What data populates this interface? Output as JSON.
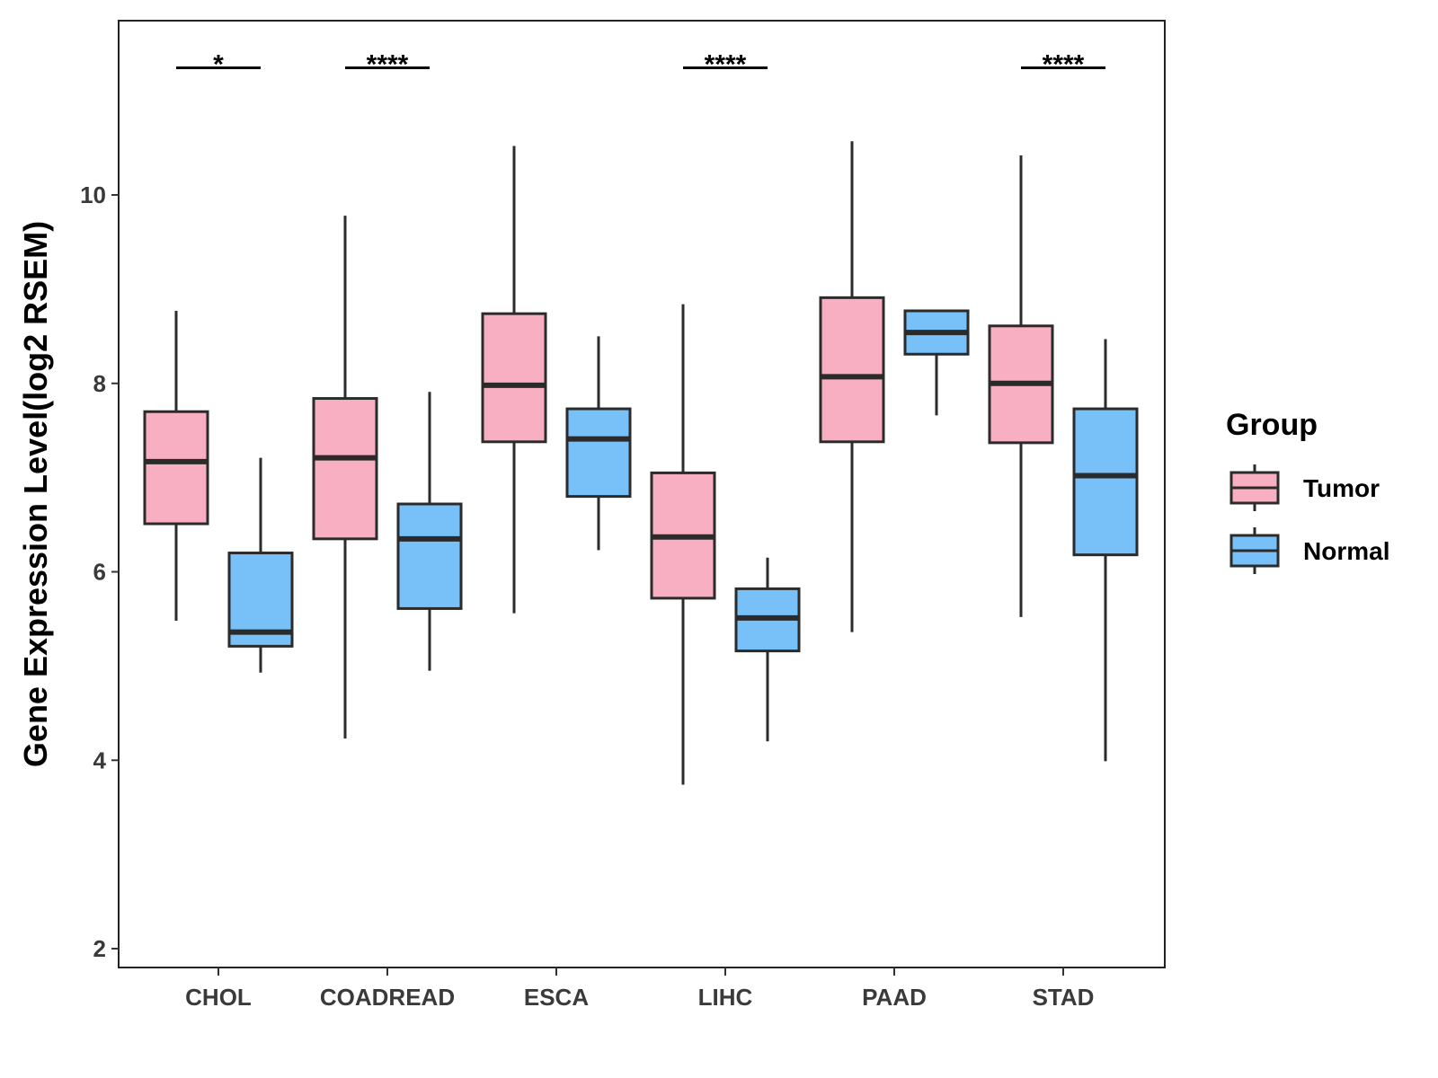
{
  "chart_data": {
    "type": "boxplot",
    "title": "",
    "xlabel": "",
    "ylabel": "Gene Expression Level(log2 RSEM)",
    "ylim": [
      1.8,
      11.85
    ],
    "yticks": [
      2,
      4,
      6,
      8,
      10
    ],
    "grid": false,
    "categories": [
      "CHOL",
      "COADREAD",
      "ESCA",
      "LIHC",
      "PAAD",
      "STAD"
    ],
    "legend": {
      "title": "Group",
      "position": "right",
      "entries": [
        {
          "name": "Tumor",
          "color": "#F9AFC2"
        },
        {
          "name": "Normal",
          "color": "#78C1F8"
        }
      ]
    },
    "series": [
      {
        "name": "Tumor",
        "color": "#F9AFC2",
        "boxes": [
          {
            "min": 5.48,
            "q1": 6.51,
            "median": 7.17,
            "q3": 7.7,
            "max": 8.77
          },
          {
            "min": 4.23,
            "q1": 6.35,
            "median": 7.21,
            "q3": 7.84,
            "max": 9.78
          },
          {
            "min": 5.56,
            "q1": 7.38,
            "median": 7.98,
            "q3": 8.74,
            "max": 10.52
          },
          {
            "min": 3.74,
            "q1": 5.72,
            "median": 6.37,
            "q3": 7.05,
            "max": 8.84
          },
          {
            "min": 5.36,
            "q1": 7.38,
            "median": 8.07,
            "q3": 8.91,
            "max": 10.57
          },
          {
            "min": 5.52,
            "q1": 7.37,
            "median": 8.0,
            "q3": 8.61,
            "max": 10.42
          }
        ]
      },
      {
        "name": "Normal",
        "color": "#78C1F8",
        "boxes": [
          {
            "min": 4.93,
            "q1": 5.21,
            "median": 5.36,
            "q3": 6.2,
            "max": 7.21
          },
          {
            "min": 4.95,
            "q1": 5.61,
            "median": 6.35,
            "q3": 6.72,
            "max": 7.91
          },
          {
            "min": 6.23,
            "q1": 6.8,
            "median": 7.41,
            "q3": 7.73,
            "max": 8.5
          },
          {
            "min": 4.2,
            "q1": 5.16,
            "median": 5.51,
            "q3": 5.82,
            "max": 6.15
          },
          {
            "min": 7.66,
            "q1": 8.31,
            "median": 8.54,
            "q3": 8.77,
            "max": 8.77
          },
          {
            "min": 3.99,
            "q1": 6.18,
            "median": 7.02,
            "q3": 7.73,
            "max": 8.47
          }
        ]
      }
    ],
    "annotations": [
      {
        "category": "CHOL",
        "label": "*"
      },
      {
        "category": "COADREAD",
        "label": "****"
      },
      {
        "category": "LIHC",
        "label": "****"
      },
      {
        "category": "STAD",
        "label": "****"
      }
    ],
    "annotation_level": 11.35
  }
}
